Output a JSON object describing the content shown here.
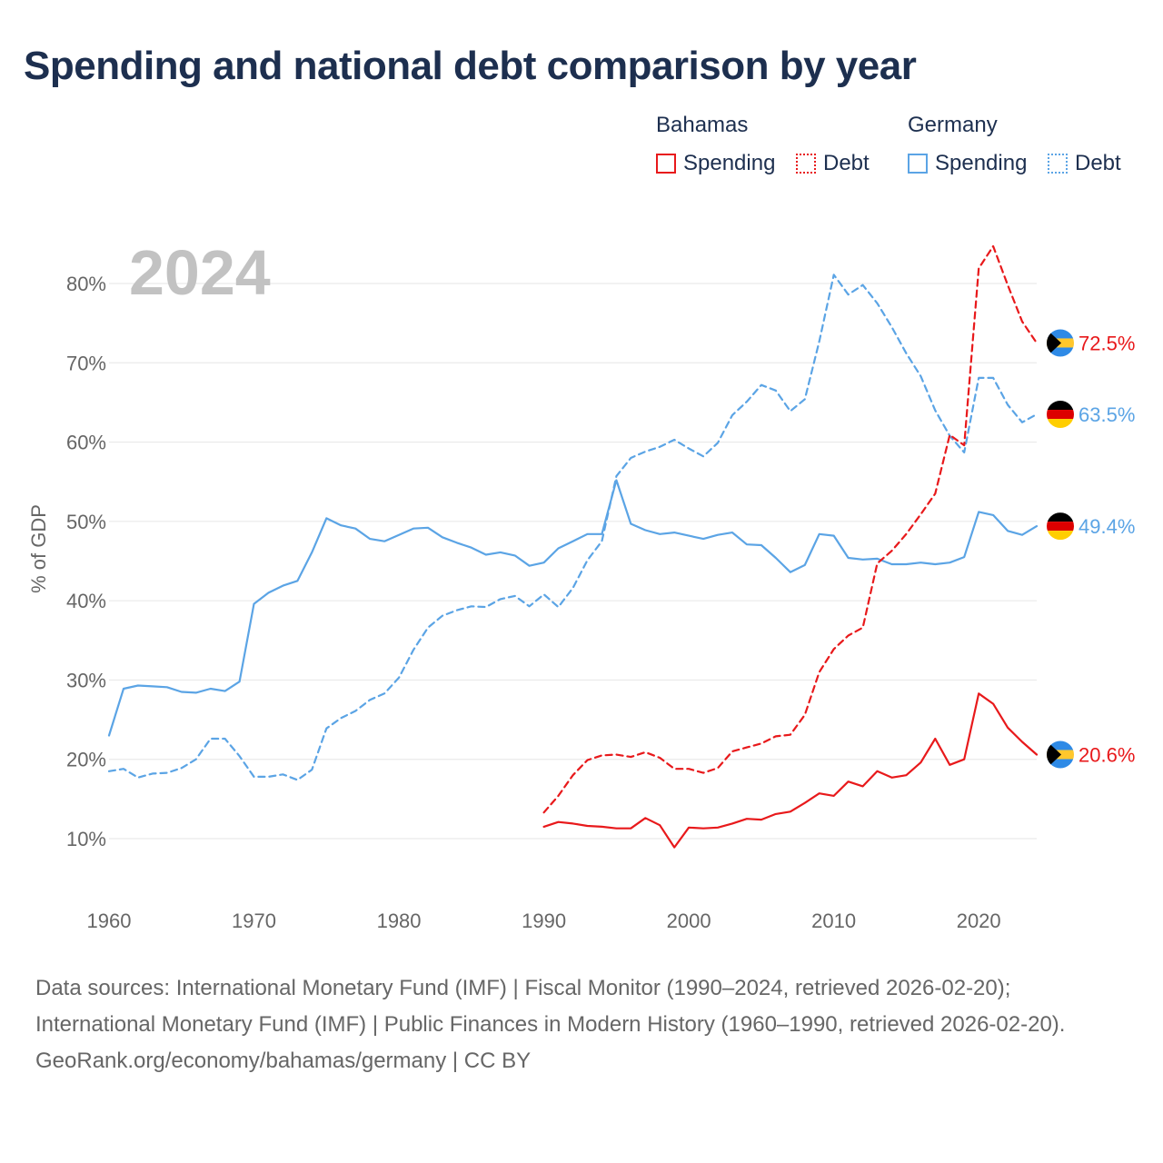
{
  "title": "Spending and national debt comparison by year",
  "legend": {
    "bahamas": {
      "title": "Bahamas",
      "spending": "Spending",
      "debt": "Debt"
    },
    "germany": {
      "title": "Germany",
      "spending": "Spending",
      "debt": "Debt"
    }
  },
  "colors": {
    "bahamas": "#e8191b",
    "germany": "#5ba4e5",
    "grid": "#e6e6e6",
    "axis_text": "#666666",
    "year_watermark": "#c2c2c2"
  },
  "chart_data": {
    "type": "line",
    "year_label": "2024",
    "ylabel": "% of GDP",
    "xlim": [
      1960,
      2024
    ],
    "ylim": [
      0,
      90
    ],
    "x_ticks": [
      1960,
      1970,
      1980,
      1990,
      2000,
      2010,
      2020
    ],
    "x_tick_labels": [
      "1960",
      "1970",
      "1980",
      "1990",
      "2000",
      "2010",
      "2020"
    ],
    "y_ticks": [
      10,
      20,
      30,
      40,
      50,
      60,
      70,
      80
    ],
    "y_tick_labels": [
      "10%",
      "20%",
      "30%",
      "40%",
      "50%",
      "60%",
      "70%",
      "80%"
    ],
    "series": [
      {
        "name": "Germany Spending",
        "country": "germany",
        "dash": false,
        "end_label": "49.4%",
        "x": [
          1960,
          1961,
          1962,
          1963,
          1964,
          1965,
          1966,
          1967,
          1968,
          1969,
          1970,
          1971,
          1972,
          1973,
          1974,
          1975,
          1976,
          1977,
          1978,
          1979,
          1980,
          1981,
          1982,
          1983,
          1984,
          1985,
          1986,
          1987,
          1988,
          1989,
          1990,
          1991,
          1992,
          1993,
          1994,
          1995,
          1996,
          1997,
          1998,
          1999,
          2000,
          2001,
          2002,
          2003,
          2004,
          2005,
          2006,
          2007,
          2008,
          2009,
          2010,
          2011,
          2012,
          2013,
          2014,
          2015,
          2016,
          2017,
          2018,
          2019,
          2020,
          2021,
          2022,
          2023,
          2024
        ],
        "values": [
          23.0,
          28.9,
          29.3,
          29.2,
          29.1,
          28.5,
          28.4,
          28.9,
          28.6,
          29.8,
          39.6,
          41.0,
          41.9,
          42.5,
          46.1,
          50.4,
          49.5,
          49.1,
          47.8,
          47.5,
          48.3,
          49.1,
          49.2,
          48.0,
          47.3,
          46.7,
          45.8,
          46.1,
          45.7,
          44.4,
          44.8,
          46.6,
          47.5,
          48.4,
          48.4,
          55.2,
          49.7,
          48.9,
          48.4,
          48.6,
          48.2,
          47.8,
          48.3,
          48.6,
          47.1,
          47.0,
          45.4,
          43.6,
          44.5,
          48.4,
          48.2,
          45.4,
          45.2,
          45.3,
          44.6,
          44.6,
          44.8,
          44.6,
          44.8,
          45.5,
          51.2,
          50.8,
          48.8,
          48.3,
          49.4
        ]
      },
      {
        "name": "Germany Debt",
        "country": "germany",
        "dash": true,
        "end_label": "63.5%",
        "x": [
          1960,
          1961,
          1962,
          1963,
          1964,
          1965,
          1966,
          1967,
          1968,
          1969,
          1970,
          1971,
          1972,
          1973,
          1974,
          1975,
          1976,
          1977,
          1978,
          1979,
          1980,
          1981,
          1982,
          1983,
          1984,
          1985,
          1986,
          1987,
          1988,
          1989,
          1990,
          1991,
          1992,
          1993,
          1994,
          1995,
          1996,
          1997,
          1998,
          1999,
          2000,
          2001,
          2002,
          2003,
          2004,
          2005,
          2006,
          2007,
          2008,
          2009,
          2010,
          2011,
          2012,
          2013,
          2014,
          2015,
          2016,
          2017,
          2018,
          2019,
          2020,
          2021,
          2022,
          2023,
          2024
        ],
        "values": [
          18.5,
          18.8,
          17.7,
          18.2,
          18.3,
          18.9,
          20.0,
          22.6,
          22.6,
          20.4,
          17.8,
          17.8,
          18.1,
          17.4,
          18.7,
          23.9,
          25.2,
          26.1,
          27.5,
          28.3,
          30.3,
          33.8,
          36.6,
          38.1,
          38.8,
          39.3,
          39.2,
          40.2,
          40.6,
          39.3,
          40.8,
          39.2,
          41.6,
          45.1,
          47.5,
          55.7,
          58.0,
          58.8,
          59.4,
          60.3,
          59.2,
          58.2,
          59.9,
          63.4,
          65.1,
          67.2,
          66.5,
          63.9,
          65.4,
          72.7,
          81.1,
          78.6,
          79.8,
          77.5,
          74.5,
          71.2,
          68.3,
          64.0,
          60.8,
          58.7,
          68.1,
          68.1,
          64.7,
          62.5,
          63.5
        ]
      },
      {
        "name": "Bahamas Spending",
        "country": "bahamas",
        "dash": false,
        "end_label": "20.6%",
        "x": [
          1990,
          1991,
          1992,
          1993,
          1994,
          1995,
          1996,
          1997,
          1998,
          1999,
          2000,
          2001,
          2002,
          2003,
          2004,
          2005,
          2006,
          2007,
          2008,
          2009,
          2010,
          2011,
          2012,
          2013,
          2014,
          2015,
          2016,
          2017,
          2018,
          2019,
          2020,
          2021,
          2022,
          2023,
          2024
        ],
        "values": [
          11.5,
          12.1,
          11.9,
          11.6,
          11.5,
          11.3,
          11.3,
          12.6,
          11.7,
          8.9,
          11.4,
          11.3,
          11.4,
          11.9,
          12.5,
          12.4,
          13.1,
          13.4,
          14.5,
          15.7,
          15.4,
          17.2,
          16.6,
          18.5,
          17.7,
          18.0,
          19.6,
          22.6,
          19.3,
          20.0,
          28.3,
          27.0,
          24.0,
          22.2,
          20.6
        ]
      },
      {
        "name": "Bahamas Debt",
        "country": "bahamas",
        "dash": true,
        "end_label": "72.5%",
        "x": [
          1990,
          1991,
          1992,
          1993,
          1994,
          1995,
          1996,
          1997,
          1998,
          1999,
          2000,
          2001,
          2002,
          2003,
          2004,
          2005,
          2006,
          2007,
          2008,
          2009,
          2010,
          2011,
          2012,
          2013,
          2014,
          2015,
          2016,
          2017,
          2018,
          2019,
          2020,
          2021,
          2022,
          2023,
          2024
        ],
        "values": [
          13.3,
          15.4,
          18.0,
          19.9,
          20.5,
          20.6,
          20.3,
          20.9,
          20.2,
          18.8,
          18.8,
          18.3,
          18.9,
          21.0,
          21.5,
          22.0,
          22.9,
          23.1,
          25.6,
          31.0,
          33.9,
          35.6,
          36.6,
          44.7,
          46.3,
          48.4,
          50.9,
          53.5,
          60.9,
          59.6,
          81.9,
          84.7,
          79.8,
          75.2,
          72.5
        ]
      }
    ]
  },
  "footer": {
    "source_line": "Data sources: International Monetary Fund (IMF) | Fiscal Monitor (1990–2024, retrieved 2026-02-20); International Monetary Fund (IMF) | Public Finances in Modern History (1960–1990, retrieved 2026-02-20).",
    "attribution": "GeoRank.org/economy/bahamas/germany | CC BY"
  }
}
